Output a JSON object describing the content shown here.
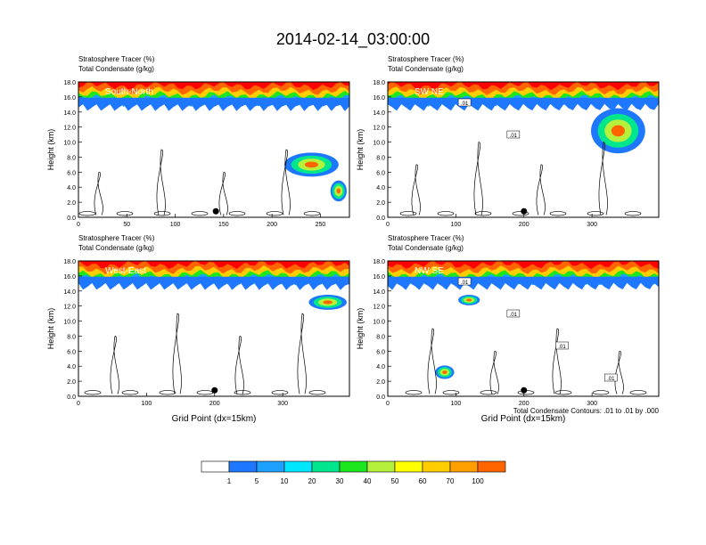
{
  "figure": {
    "title": "2014-02-14_03:00:00",
    "contour_note": "Total Condensate Contours: .01 to .01 by .000"
  },
  "colorbar": {
    "labels": [
      "1",
      "5",
      "10",
      "20",
      "30",
      "40",
      "50",
      "60",
      "70",
      "100"
    ],
    "colors": [
      "#ffffff",
      "#1e78ff",
      "#1ea0ff",
      "#00e6ff",
      "#00e68c",
      "#1ee61e",
      "#b4f03c",
      "#ffff00",
      "#ffcd00",
      "#ffa000",
      "#ff6400",
      "#ff0000"
    ]
  },
  "chart_data": [
    {
      "type": "heatmap",
      "label": "South-North",
      "title_left_1": "Stratosphere Tracer   (%)",
      "title_left_2": "Total Condensate   (g/kg)",
      "xlabel": "",
      "ylabel": "Height (km)",
      "xlim": [
        0,
        280
      ],
      "ylim": [
        0,
        18
      ],
      "xticks": [
        "0",
        "50",
        "100",
        "150",
        "200",
        "250"
      ],
      "yticks": [
        "0.0",
        "2.0",
        "4.0",
        "6.0",
        "8.0",
        "10.0",
        "12.0",
        "14.0",
        "16.0",
        "18.0"
      ],
      "marker_x": 142,
      "contour_labels": []
    },
    {
      "type": "heatmap",
      "label": "SW NE",
      "title_left_1": "Stratosphere Tracer   (%)",
      "title_left_2": "Total Condensate   (g/kg)",
      "xlabel": "",
      "ylabel": "Height (km)",
      "xlim": [
        0,
        398
      ],
      "ylim": [
        0,
        18
      ],
      "xticks": [
        "0",
        "100",
        "200",
        "300"
      ],
      "yticks": [
        "0.0",
        "2.0",
        "4.0",
        "6.0",
        "8.0",
        "10.0",
        "12.0",
        "14.0",
        "16.0",
        "18.0"
      ],
      "marker_x": 200,
      "contour_labels": [
        ".01",
        ".01"
      ]
    },
    {
      "type": "heatmap",
      "label": "West-East",
      "title_left_1": "Stratosphere Tracer   (%)",
      "title_left_2": "Total Condensate   (g/kg)",
      "xlabel": "Grid Point (dx=15km)",
      "ylabel": "Height (km)",
      "xlim": [
        0,
        398
      ],
      "ylim": [
        0,
        18
      ],
      "xticks": [
        "0",
        "100",
        "200",
        "300"
      ],
      "yticks": [
        "0.0",
        "2.0",
        "4.0",
        "6.0",
        "8.0",
        "10.0",
        "12.0",
        "14.0",
        "16.0",
        "18.0"
      ],
      "marker_x": 200,
      "contour_labels": []
    },
    {
      "type": "heatmap",
      "label": "NW SE",
      "title_left_1": "Stratosphere Tracer   (%)",
      "title_left_2": "Total Condensate   (g/kg)",
      "xlabel": "Grid Point (dx=15km)",
      "ylabel": "Height (km)",
      "xlim": [
        0,
        398
      ],
      "ylim": [
        0,
        18
      ],
      "xticks": [
        "0",
        "100",
        "200",
        "300"
      ],
      "yticks": [
        "0.0",
        "2.0",
        "4.0",
        "6.0",
        "8.0",
        "10.0",
        "12.0",
        "14.0",
        "16.0",
        "18.0"
      ],
      "marker_x": 200,
      "contour_labels": [
        ".01",
        ".01",
        ".01",
        ".01"
      ]
    }
  ]
}
